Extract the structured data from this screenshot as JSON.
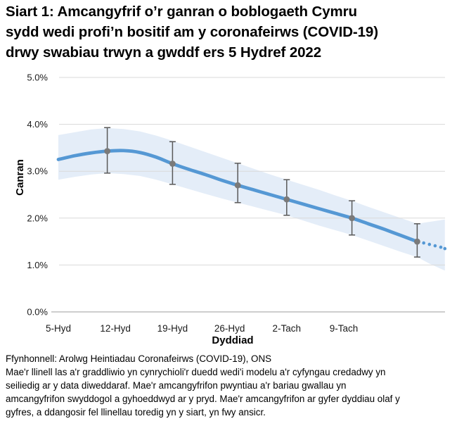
{
  "header": {
    "title_lines": [
      "Siart 1: Amcangyfrif o’r ganran o boblogaeth Cymru",
      "sydd wedi profi’n bositif am y coronafeirws (COVID-19)",
      "drwy swabiau trwyn a gwddf ers 5 Hydref 2022"
    ]
  },
  "chart_data": {
    "type": "line",
    "title": "Siart 1: Amcangyfrif o’r ganran o boblogaeth Cymru sydd wedi profi’n bositif am y coronafeirws (COVID-19) drwy swabiau trwyn a gwddf ers 5 Hydref 2022",
    "xlabel": "Dyddiad",
    "ylabel": "Canran",
    "x_unit": "days after 5 Hydref (5 Oct) 2022",
    "xlim_days": [
      0,
      47.4
    ],
    "ylim": [
      0,
      5
    ],
    "grid": true,
    "legend_position": "none",
    "y_ticks": [
      {
        "value": 0,
        "label": "0.0%"
      },
      {
        "value": 1,
        "label": "1.0%"
      },
      {
        "value": 2,
        "label": "2.0%"
      },
      {
        "value": 3,
        "label": "3.0%"
      },
      {
        "value": 4,
        "label": "4.0%"
      },
      {
        "value": 5,
        "label": "5.0%"
      }
    ],
    "x_ticks": [
      {
        "day": 0,
        "label": "5-Hyd"
      },
      {
        "day": 7,
        "label": "12-Hyd"
      },
      {
        "day": 14,
        "label": "19-Hyd"
      },
      {
        "day": 21,
        "label": "26-Hyd"
      },
      {
        "day": 28,
        "label": "2-Tach"
      },
      {
        "day": 35,
        "label": "9-Tach"
      }
    ],
    "series": {
      "modelled_trend_solid": [
        [
          0,
          3.25
        ],
        [
          2,
          3.33
        ],
        [
          4,
          3.39
        ],
        [
          6,
          3.43
        ],
        [
          8,
          3.44
        ],
        [
          10,
          3.4
        ],
        [
          12,
          3.3
        ],
        [
          14,
          3.16
        ],
        [
          16,
          3.04
        ],
        [
          18,
          2.93
        ],
        [
          20,
          2.81
        ],
        [
          22,
          2.7
        ],
        [
          24,
          2.6
        ],
        [
          26,
          2.5
        ],
        [
          28,
          2.4
        ],
        [
          30,
          2.3
        ],
        [
          32,
          2.2
        ],
        [
          34,
          2.1
        ],
        [
          36,
          2.0
        ],
        [
          38,
          1.88
        ],
        [
          40,
          1.76
        ],
        [
          42,
          1.63
        ],
        [
          44,
          1.5
        ]
      ],
      "modelled_trend_dotted_points": [
        [
          44.8,
          1.47
        ],
        [
          45.5,
          1.44
        ],
        [
          46.2,
          1.41
        ],
        [
          46.9,
          1.38
        ],
        [
          47.4,
          1.35
        ]
      ],
      "credible_interval_band": [
        [
          0,
          2.82,
          3.77
        ],
        [
          2,
          2.88,
          3.83
        ],
        [
          4,
          2.93,
          3.89
        ],
        [
          6,
          2.96,
          3.92
        ],
        [
          8,
          2.94,
          3.9
        ],
        [
          10,
          2.9,
          3.85
        ],
        [
          12,
          2.82,
          3.76
        ],
        [
          14,
          2.72,
          3.65
        ],
        [
          16,
          2.62,
          3.53
        ],
        [
          18,
          2.52,
          3.41
        ],
        [
          20,
          2.42,
          3.29
        ],
        [
          22,
          2.33,
          3.17
        ],
        [
          24,
          2.24,
          3.05
        ],
        [
          26,
          2.15,
          2.93
        ],
        [
          28,
          2.06,
          2.82
        ],
        [
          30,
          1.95,
          2.71
        ],
        [
          32,
          1.84,
          2.6
        ],
        [
          34,
          1.74,
          2.48
        ],
        [
          36,
          1.64,
          2.37
        ],
        [
          38,
          1.52,
          2.24
        ],
        [
          40,
          1.4,
          2.12
        ],
        [
          42,
          1.28,
          2.0
        ],
        [
          44,
          1.17,
          1.88
        ],
        [
          45.5,
          1.03,
          1.92
        ],
        [
          47.4,
          0.88,
          1.97
        ]
      ],
      "official_point_estimates": [
        {
          "approx_date": "11-Hyd",
          "day": 6,
          "est": 3.43,
          "lo": 2.96,
          "hi": 3.93
        },
        {
          "approx_date": "19-Hyd",
          "day": 14,
          "est": 3.16,
          "lo": 2.72,
          "hi": 3.63
        },
        {
          "approx_date": "27-Hyd",
          "day": 22,
          "est": 2.7,
          "lo": 2.33,
          "hi": 3.17
        },
        {
          "approx_date": "2-Tach",
          "day": 28,
          "est": 2.4,
          "lo": 2.06,
          "hi": 2.82
        },
        {
          "approx_date": "10-Tach",
          "day": 36,
          "est": 2.0,
          "lo": 1.64,
          "hi": 2.37
        },
        {
          "approx_date": "18-Tach",
          "day": 44,
          "est": 1.5,
          "lo": 1.17,
          "hi": 1.88
        }
      ]
    },
    "colors": {
      "trend_line": "#5598d4",
      "band_fill": "#e4edf8",
      "error_bar": "#595959",
      "marker": "#7a7a7a",
      "gridline": "#d9d9d9",
      "axis_line": "#9e9e9e",
      "tick_text": "#1a1a1a"
    }
  },
  "footer": {
    "source": "Ffynhonnell: Arolwg Heintiadau Coronafeirws (COVID-19), ONS",
    "note_lines": [
      "Mae'r llinell las a'r graddliwio yn cynrychioli'r duedd wedi'i modelu a'r cyfyngau credadwy yn",
      "seiliedig ar y data diweddaraf. Mae'r amcangyfrifon pwyntiau a'r bariau gwallau yn",
      "amcangyfrifon swyddogol a gyhoeddwyd ar y pryd. Mae'r amcangyfrifon ar gyfer dyddiau olaf y",
      "gyfres, a ddangosir fel llinellau toredig yn y siart, yn fwy ansicr."
    ]
  }
}
